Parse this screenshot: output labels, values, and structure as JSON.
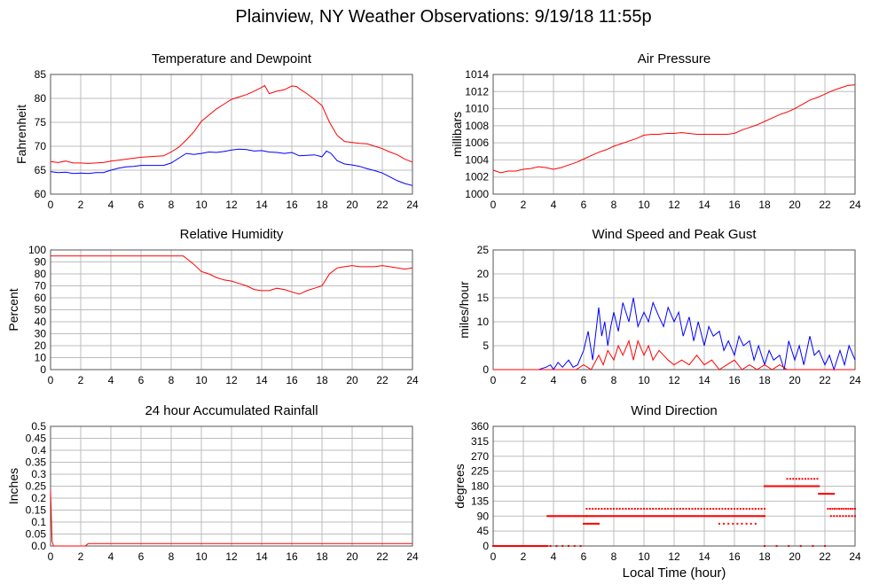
{
  "page": {
    "title": "Plainview, NY Weather Observations: 9/19/18 11:55p",
    "xlabel": "Local Time (hour)"
  },
  "chart_data": [
    {
      "id": "temp",
      "type": "line",
      "title": "Temperature and Dewpoint",
      "ylabel": "Fahrenheit",
      "xlim": [
        0,
        24
      ],
      "ylim": [
        60,
        85
      ],
      "xticks": [
        0,
        2,
        4,
        6,
        8,
        10,
        12,
        14,
        16,
        18,
        20,
        22,
        24
      ],
      "yticks": [
        60,
        65,
        70,
        75,
        80,
        85
      ],
      "grid": true,
      "series": [
        {
          "color": "#ff0000",
          "x": [
            0,
            0.5,
            1,
            1.5,
            2,
            2.5,
            3,
            3.5,
            4,
            4.5,
            5,
            5.5,
            6,
            6.5,
            7,
            7.5,
            8,
            8.5,
            9,
            9.5,
            10,
            10.5,
            11,
            11.5,
            12,
            12.5,
            13,
            13.5,
            14,
            14.2,
            14.5,
            15,
            15.5,
            16,
            16.3,
            16.6,
            17,
            17.5,
            18,
            18.5,
            19,
            19.5,
            20,
            20.5,
            21,
            21.5,
            22,
            22.5,
            23,
            23.5,
            24
          ],
          "y": [
            66.8,
            66.6,
            66.9,
            66.5,
            66.5,
            66.4,
            66.5,
            66.6,
            66.9,
            67.1,
            67.3,
            67.5,
            67.7,
            67.8,
            67.9,
            68.0,
            68.8,
            69.8,
            71.3,
            73.0,
            75.2,
            76.5,
            77.8,
            78.8,
            79.8,
            80.3,
            80.8,
            81.5,
            82.3,
            82.7,
            81.0,
            81.5,
            81.8,
            82.6,
            82.5,
            81.8,
            81.0,
            79.8,
            78.5,
            75.0,
            72.3,
            71.0,
            70.8,
            70.6,
            70.5,
            70.0,
            69.5,
            68.8,
            68.2,
            67.3,
            66.7
          ]
        },
        {
          "color": "#0000ff",
          "x": [
            0,
            0.5,
            1,
            1.5,
            2,
            2.5,
            3,
            3.5,
            4,
            4.5,
            5,
            5.5,
            6,
            6.5,
            7,
            7.5,
            8,
            8.5,
            9,
            9.5,
            10,
            10.5,
            11,
            11.5,
            12,
            12.5,
            13,
            13.5,
            14,
            14.5,
            15,
            15.5,
            16,
            16.5,
            17,
            17.5,
            18,
            18.3,
            18.6,
            19,
            19.5,
            20,
            20.5,
            21,
            21.5,
            22,
            22.5,
            23,
            23.5,
            24
          ],
          "y": [
            64.7,
            64.5,
            64.6,
            64.3,
            64.4,
            64.3,
            64.5,
            64.5,
            65.0,
            65.4,
            65.7,
            65.8,
            66.0,
            66.0,
            66.0,
            66.0,
            66.5,
            67.5,
            68.5,
            68.3,
            68.5,
            68.8,
            68.7,
            68.9,
            69.2,
            69.4,
            69.3,
            69.0,
            69.1,
            68.8,
            68.7,
            68.5,
            68.7,
            68.0,
            68.1,
            68.2,
            67.8,
            69.0,
            68.5,
            67.0,
            66.3,
            66.1,
            65.8,
            65.3,
            64.9,
            64.4,
            63.6,
            62.8,
            62.2,
            61.8
          ]
        }
      ]
    },
    {
      "id": "pressure",
      "type": "line",
      "title": "Air Pressure",
      "ylabel": "millibars",
      "xlim": [
        0,
        24
      ],
      "ylim": [
        1000,
        1014
      ],
      "xticks": [
        0,
        2,
        4,
        6,
        8,
        10,
        12,
        14,
        16,
        18,
        20,
        22,
        24
      ],
      "yticks": [
        1000,
        1002,
        1004,
        1006,
        1008,
        1010,
        1012,
        1014
      ],
      "grid": true,
      "series": [
        {
          "color": "#ff0000",
          "x": [
            0,
            0.5,
            1,
            1.5,
            2,
            2.5,
            3,
            3.5,
            4,
            4.5,
            5,
            5.5,
            6,
            6.5,
            7,
            7.5,
            8,
            8.5,
            9,
            9.5,
            10,
            10.5,
            11,
            11.5,
            12,
            12.5,
            13,
            13.5,
            14,
            14.5,
            15,
            15.5,
            16,
            16.5,
            17,
            17.5,
            18,
            18.5,
            19,
            19.5,
            20,
            20.5,
            21,
            21.5,
            22,
            22.5,
            23,
            23.5,
            24
          ],
          "y": [
            1002.8,
            1002.5,
            1002.7,
            1002.7,
            1002.9,
            1003.0,
            1003.2,
            1003.1,
            1002.9,
            1003.1,
            1003.4,
            1003.7,
            1004.1,
            1004.5,
            1004.9,
            1005.2,
            1005.6,
            1005.9,
            1006.2,
            1006.5,
            1006.9,
            1007.0,
            1007.0,
            1007.1,
            1007.1,
            1007.2,
            1007.1,
            1007.0,
            1007.0,
            1007.0,
            1007.0,
            1007.0,
            1007.1,
            1007.5,
            1007.8,
            1008.1,
            1008.5,
            1008.9,
            1009.3,
            1009.6,
            1010.0,
            1010.5,
            1011.0,
            1011.3,
            1011.7,
            1012.1,
            1012.4,
            1012.7,
            1012.8
          ]
        }
      ]
    },
    {
      "id": "humidity",
      "type": "line",
      "title": "Relative Humidity",
      "ylabel": "Percent",
      "xlim": [
        0,
        24
      ],
      "ylim": [
        0,
        100
      ],
      "xticks": [
        0,
        2,
        4,
        6,
        8,
        10,
        12,
        14,
        16,
        18,
        20,
        22,
        24
      ],
      "yticks": [
        0,
        10,
        20,
        30,
        40,
        50,
        60,
        70,
        80,
        90,
        100
      ],
      "grid": true,
      "series": [
        {
          "color": "#ff0000",
          "x": [
            0,
            1,
            2,
            3,
            4,
            5,
            6,
            7,
            8,
            8.8,
            9,
            9.5,
            10,
            10.5,
            11,
            11.5,
            12,
            12.5,
            13,
            13.5,
            14,
            14.5,
            15,
            15.5,
            16,
            16.5,
            17,
            17.5,
            18,
            18.5,
            19,
            19.5,
            20,
            20.5,
            21,
            21.5,
            22,
            22.5,
            23,
            23.5,
            24
          ],
          "y": [
            95,
            95,
            95,
            95,
            95,
            95,
            95,
            95,
            95,
            95,
            93,
            88,
            82,
            80,
            77,
            75,
            74,
            72,
            70,
            67,
            66,
            66,
            68,
            67,
            65,
            63,
            66,
            68,
            70,
            80,
            85,
            86,
            87,
            86,
            86,
            86,
            87,
            86,
            85,
            84,
            85
          ]
        }
      ]
    },
    {
      "id": "wind",
      "type": "line",
      "title": "Wind Speed and Peak Gust",
      "ylabel": "miles/hour",
      "xlim": [
        0,
        24
      ],
      "ylim": [
        0,
        25
      ],
      "xticks": [
        0,
        2,
        4,
        6,
        8,
        10,
        12,
        14,
        16,
        18,
        20,
        22,
        24
      ],
      "yticks": [
        0,
        5,
        10,
        15,
        20,
        25
      ],
      "grid": true,
      "series": [
        {
          "color": "#0000ff",
          "x": [
            0,
            1,
            2,
            3,
            3.5,
            3.8,
            4,
            4.3,
            4.6,
            5,
            5.3,
            5.6,
            6,
            6.3,
            6.6,
            7,
            7.2,
            7.4,
            7.6,
            7.8,
            8,
            8.3,
            8.6,
            9,
            9.3,
            9.6,
            10,
            10.3,
            10.6,
            11,
            11.3,
            11.6,
            12,
            12.3,
            12.6,
            13,
            13.3,
            13.6,
            14,
            14.3,
            14.6,
            15,
            15.3,
            15.6,
            16,
            16.3,
            16.6,
            17,
            17.3,
            17.6,
            18,
            18.3,
            18.6,
            19,
            19.3,
            19.6,
            20,
            20.3,
            20.6,
            21,
            21.3,
            21.6,
            22,
            22.3,
            22.6,
            23,
            23.3,
            23.6,
            24
          ],
          "y": [
            0,
            0,
            0,
            0,
            0.5,
            1,
            0,
            1.5,
            0.5,
            2,
            0.5,
            1,
            4,
            8,
            2,
            13,
            7,
            10,
            5,
            9,
            12,
            8,
            14,
            10,
            15,
            9,
            12,
            10,
            14,
            11,
            9,
            13,
            10,
            12,
            7,
            11,
            6,
            10,
            5,
            9,
            7,
            8,
            4,
            6,
            3,
            7,
            5,
            6,
            2,
            5,
            1,
            4,
            2,
            3,
            0,
            6,
            2,
            5,
            1,
            7,
            3,
            4,
            1,
            3,
            0,
            4,
            1,
            5,
            2
          ]
        },
        {
          "color": "#ff0000",
          "x": [
            0,
            1,
            2,
            3,
            4,
            5,
            5.5,
            6,
            6.5,
            7,
            7.3,
            7.6,
            8,
            8.3,
            8.6,
            9,
            9.3,
            9.6,
            10,
            10.3,
            10.6,
            11,
            11.3,
            11.6,
            12,
            12.5,
            13,
            13.5,
            14,
            14.5,
            15,
            15.5,
            16,
            16.5,
            17,
            17.5,
            18,
            18.5,
            19,
            19.5,
            20,
            21,
            22,
            23,
            24
          ],
          "y": [
            0,
            0,
            0,
            0,
            0,
            0,
            0,
            1,
            0,
            3,
            1,
            4,
            2,
            5,
            3,
            6,
            2,
            6,
            3,
            5,
            2,
            4,
            3,
            2,
            1,
            2,
            1,
            3,
            1,
            2,
            0,
            1,
            2,
            0,
            1,
            0,
            1,
            0,
            1,
            0,
            0,
            0,
            0,
            0,
            0
          ]
        }
      ]
    },
    {
      "id": "rain",
      "type": "line",
      "title": "24 hour Accumulated Rainfall",
      "ylabel": "Inches",
      "xlim": [
        0,
        24
      ],
      "ylim": [
        0,
        0.5
      ],
      "xticks": [
        0,
        2,
        4,
        6,
        8,
        10,
        12,
        14,
        16,
        18,
        20,
        22,
        24
      ],
      "yticks": [
        0.0,
        0.05,
        0.1,
        0.15,
        0.2,
        0.25,
        0.3,
        0.35,
        0.4,
        0.45,
        0.5
      ],
      "ytick_labels": [
        "0.0",
        "0.05",
        "0.1",
        "0.15",
        "0.2",
        "0.25",
        "0.3",
        "0.35",
        "0.4",
        "0.45",
        "0.5"
      ],
      "grid": true,
      "series": [
        {
          "color": "#ff0000",
          "x": [
            0,
            0.05,
            0.1,
            0.2,
            1,
            2,
            2.3,
            2.5,
            4,
            8,
            12,
            16,
            20,
            24
          ],
          "y": [
            0.23,
            0.12,
            0.02,
            0.0,
            0.0,
            0.0,
            0.0,
            0.01,
            0.01,
            0.01,
            0.01,
            0.01,
            0.01,
            0.01
          ]
        }
      ]
    },
    {
      "id": "direction",
      "type": "scatter",
      "title": "Wind Direction",
      "ylabel": "degrees",
      "xlim": [
        0,
        24
      ],
      "ylim": [
        0,
        360
      ],
      "xticks": [
        0,
        2,
        4,
        6,
        8,
        10,
        12,
        14,
        16,
        18,
        20,
        22,
        24
      ],
      "yticks": [
        0,
        45,
        90,
        135,
        180,
        225,
        270,
        315,
        360
      ],
      "grid": true,
      "series": [
        {
          "color": "#ff0000",
          "segments": [
            {
              "x0": 0,
              "x1": 3.6,
              "y": 0,
              "step": 0.1
            },
            {
              "x0": 3.6,
              "x1": 6.2,
              "y": 90,
              "step": 0.1
            },
            {
              "x0": 3.8,
              "x1": 5.8,
              "y": 0,
              "step": 0.4
            },
            {
              "x0": 6.2,
              "x1": 18.0,
              "y": 90,
              "step": 0.1
            },
            {
              "x0": 6.2,
              "x1": 18.0,
              "y": 112,
              "step": 0.2
            },
            {
              "x0": 6.0,
              "x1": 7.0,
              "y": 67,
              "step": 0.1
            },
            {
              "x0": 15.0,
              "x1": 17.5,
              "y": 67,
              "step": 0.3
            },
            {
              "x0": 18.0,
              "x1": 21.6,
              "y": 180,
              "step": 0.1
            },
            {
              "x0": 19.5,
              "x1": 21.6,
              "y": 202,
              "step": 0.2
            },
            {
              "x0": 21.6,
              "x1": 22.6,
              "y": 157,
              "step": 0.1
            },
            {
              "x0": 22.2,
              "x1": 24,
              "y": 112,
              "step": 0.15
            },
            {
              "x0": 22.4,
              "x1": 24,
              "y": 90,
              "step": 0.2
            },
            {
              "x0": 18.0,
              "x1": 22.5,
              "y": 0,
              "step": 0.8
            }
          ]
        }
      ]
    }
  ]
}
